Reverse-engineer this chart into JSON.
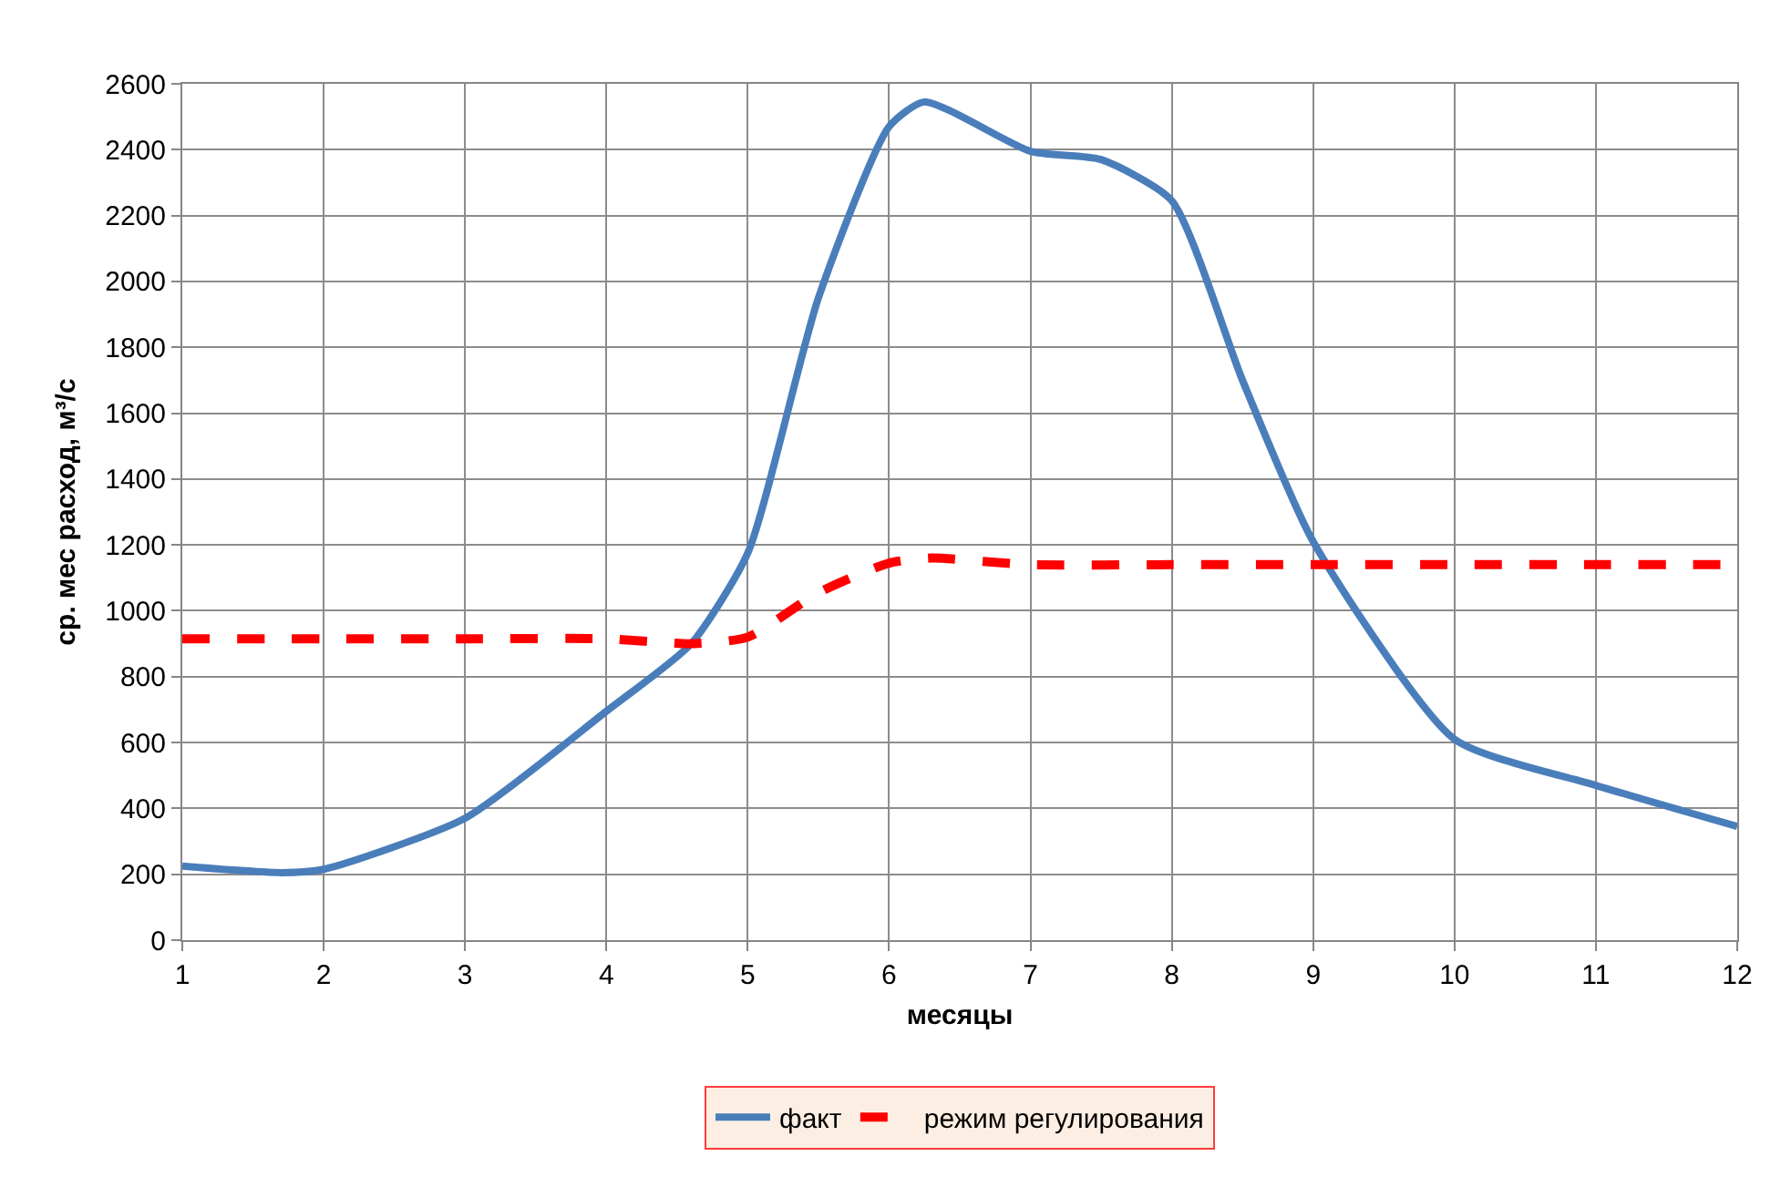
{
  "chart_data": {
    "type": "line",
    "xlabel": "месяцы",
    "ylabel": "ср. мес расход, м³/с",
    "xlim": [
      1,
      12
    ],
    "xticks": [
      1,
      2,
      3,
      4,
      5,
      6,
      7,
      8,
      9,
      10,
      11,
      12
    ],
    "ylim": [
      0,
      2600
    ],
    "yticks": [
      0,
      200,
      400,
      600,
      800,
      1000,
      1200,
      1400,
      1600,
      1800,
      2000,
      2200,
      2400,
      2600
    ],
    "grid": true,
    "legend": "bottom",
    "marker": "none",
    "series": [
      {
        "name": "факт",
        "color": "#4a7ebb",
        "line_style": "solid",
        "x": [
          1,
          1.7,
          2,
          3,
          4,
          4.6,
          5,
          5.5,
          6,
          6.25,
          7,
          7.5,
          8,
          8.5,
          9,
          10,
          11,
          12
        ],
        "values": [
          225,
          205,
          215,
          370,
          695,
          900,
          1175,
          1950,
          2470,
          2545,
          2395,
          2370,
          2245,
          1700,
          1210,
          610,
          470,
          345
        ]
      },
      {
        "name": "режим регулирования",
        "color": "#ff0000",
        "line_style": "dashed",
        "x": [
          1,
          2,
          3,
          4,
          4.6,
          5,
          5.5,
          6,
          6.3,
          7,
          8,
          9,
          10,
          11,
          12
        ],
        "values": [
          915,
          915,
          915,
          915,
          900,
          920,
          1055,
          1145,
          1160,
          1140,
          1140,
          1140,
          1140,
          1140,
          1140
        ]
      }
    ]
  }
}
